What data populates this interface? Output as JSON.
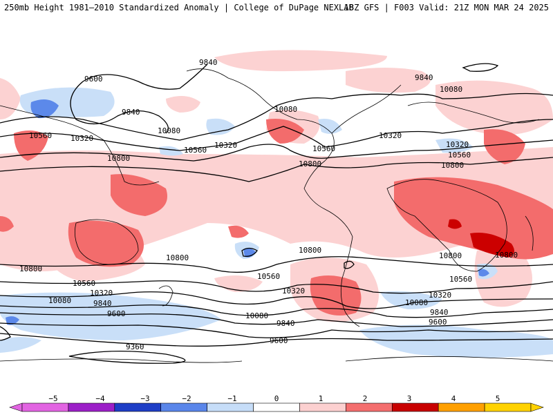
{
  "header": {
    "left_title": "250mb Height 1981–2010 Standardized Anomaly | College of DuPage NEXLAB",
    "right_title": "18Z GFS | F003 Valid: 21Z MON MAR 24 2025"
  },
  "map": {
    "contour_labels": [
      "9840",
      "9600",
      "9840",
      "10080",
      "10560",
      "10320",
      "10560",
      "10320",
      "10800",
      "10080",
      "10560",
      "10320",
      "10800",
      "9840",
      "10080",
      "10320",
      "10560",
      "10800",
      "10800",
      "10800",
      "10800",
      "10800",
      "10800",
      "10560",
      "10560",
      "10560",
      "10320",
      "10320",
      "10080",
      "10080",
      "9840",
      "9840",
      "9600",
      "9600",
      "9600",
      "9360",
      "10080",
      "9840",
      "10320"
    ],
    "colors": {
      "anom_pos_1": "#fcd2d2",
      "anom_pos_2": "#f36c6c",
      "anom_pos_3": "#cc0000",
      "anom_neg_1": "#c9dff8",
      "anom_neg_2": "#5c89ea",
      "anom_neg_3": "#2040c8",
      "coast": "#000000"
    }
  },
  "colorbar": {
    "labels": [
      "−5",
      "−4",
      "−3",
      "−2",
      "−1",
      "0",
      "1",
      "2",
      "3",
      "4",
      "5"
    ],
    "colors": [
      "#e264e2",
      "#9c20c8",
      "#1e3ec6",
      "#5a86ea",
      "#c6ddf8",
      "#ffffff",
      "#fcd0d0",
      "#f46e6e",
      "#c80000",
      "#ffa000",
      "#ffd200"
    ]
  }
}
